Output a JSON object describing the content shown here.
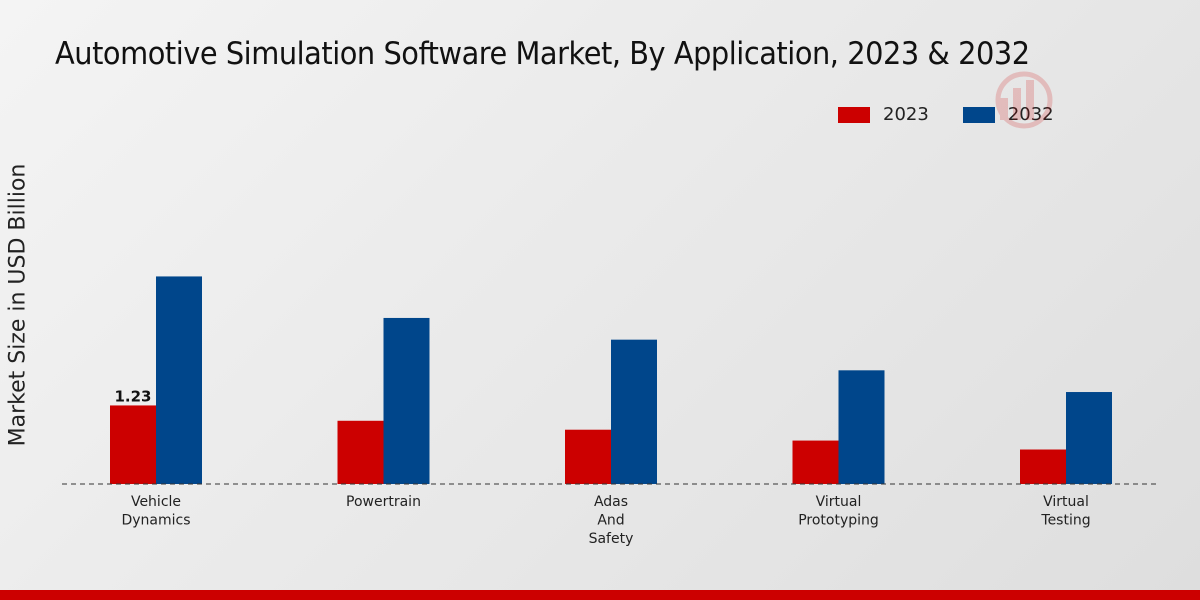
{
  "chart_data": {
    "type": "bar",
    "title": "Automotive Simulation Software Market, By Application, 2023 & 2032",
    "xlabel": "",
    "ylabel": "Market Size in USD Billion",
    "categories": [
      [
        "Vehicle",
        "Dynamics"
      ],
      [
        "Powertrain"
      ],
      [
        "Adas",
        "And",
        "Safety"
      ],
      [
        "Virtual",
        "Prototyping"
      ],
      [
        "Virtual",
        "Testing"
      ]
    ],
    "series": [
      {
        "name": "2023",
        "color": "#cc0000",
        "values": [
          1.23,
          0.99,
          0.85,
          0.68,
          0.54
        ]
      },
      {
        "name": "2032",
        "color": "#00468b",
        "values": [
          3.25,
          2.6,
          2.26,
          1.78,
          1.44
        ]
      }
    ],
    "data_labels": [
      {
        "series": 0,
        "index": 0,
        "text": "1.23"
      }
    ],
    "ylim": [
      0,
      7.5
    ],
    "legend_position": "top-right",
    "grid": false
  }
}
